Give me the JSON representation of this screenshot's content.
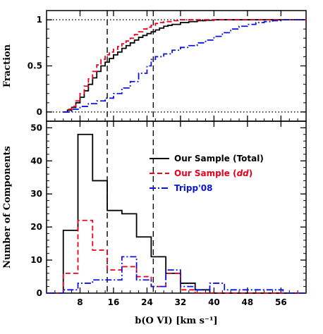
{
  "chart_data": [
    {
      "type": "line",
      "panel": "cumulative",
      "xlabel": "",
      "ylabel": "Fraction",
      "xlim": [
        0,
        62
      ],
      "ylim": [
        -0.1,
        1.1
      ],
      "y_ticks": [
        0,
        0.5,
        1
      ],
      "y_tick_labels": [
        "0",
        "0.5",
        "1"
      ],
      "reference_lines_y": [
        0,
        1
      ],
      "reference_lines_x": [
        14.5,
        25.5
      ],
      "series": [
        {
          "color": "#000000",
          "dash": "solid",
          "x": [
            4,
            5,
            6,
            7,
            8,
            9,
            10,
            11,
            12,
            13,
            14,
            15,
            16,
            17,
            18,
            19,
            20,
            21,
            22,
            23,
            24,
            25,
            26,
            27,
            28,
            29,
            30,
            32,
            34,
            36,
            38,
            40
          ],
          "y": [
            0.0,
            0.02,
            0.05,
            0.1,
            0.16,
            0.23,
            0.3,
            0.37,
            0.44,
            0.5,
            0.54,
            0.58,
            0.62,
            0.65,
            0.69,
            0.72,
            0.75,
            0.78,
            0.81,
            0.83,
            0.85,
            0.87,
            0.89,
            0.91,
            0.93,
            0.94,
            0.95,
            0.97,
            0.98,
            0.99,
            0.995,
            1.0
          ]
        },
        {
          "color": "#e8001c",
          "dash": "dashed",
          "x": [
            4,
            5,
            6,
            7,
            8,
            9,
            10,
            11,
            12,
            13,
            14,
            15,
            16,
            17,
            18,
            19,
            20,
            21,
            22,
            23,
            24,
            25,
            26,
            27,
            28,
            30,
            32
          ],
          "y": [
            0.0,
            0.03,
            0.06,
            0.12,
            0.2,
            0.28,
            0.36,
            0.44,
            0.51,
            0.57,
            0.62,
            0.65,
            0.68,
            0.71,
            0.74,
            0.77,
            0.8,
            0.84,
            0.87,
            0.9,
            0.92,
            0.94,
            0.96,
            0.97,
            0.98,
            0.99,
            1.0
          ]
        },
        {
          "color": "#0a14d8",
          "dash": "dashdot",
          "x": [
            4,
            6,
            8,
            10,
            12,
            14,
            16,
            18,
            20,
            22,
            24,
            25,
            26,
            28,
            30,
            32,
            34,
            36,
            38,
            40,
            42,
            44,
            46,
            48,
            50,
            52,
            54,
            56
          ],
          "y": [
            0.0,
            0.03,
            0.06,
            0.09,
            0.12,
            0.15,
            0.2,
            0.26,
            0.33,
            0.42,
            0.5,
            0.57,
            0.6,
            0.63,
            0.67,
            0.7,
            0.72,
            0.75,
            0.78,
            0.82,
            0.86,
            0.9,
            0.93,
            0.95,
            0.97,
            0.98,
            0.99,
            1.0
          ]
        }
      ]
    },
    {
      "type": "histogram",
      "panel": "histogram",
      "xlabel": "b(O VI) [km s⁻¹]",
      "ylabel": "Number of Components",
      "xlim": [
        0,
        62
      ],
      "ylim": [
        0,
        52
      ],
      "x_ticks": [
        8,
        16,
        24,
        32,
        40,
        48,
        56
      ],
      "x_tick_labels": [
        "8",
        "16",
        "24",
        "32",
        "40",
        "48",
        "56"
      ],
      "y_ticks": [
        0,
        10,
        20,
        30,
        40,
        50
      ],
      "y_tick_labels": [
        "0",
        "10",
        "20",
        "30",
        "40",
        "50"
      ],
      "reference_lines_x": [
        14.5,
        25.5
      ],
      "bin_edges": [
        0,
        4,
        7.5,
        11,
        14.5,
        18,
        21.5,
        25,
        28.5,
        32,
        35.5,
        39,
        42.5,
        46,
        49.5,
        53,
        56.5,
        62
      ],
      "series": [
        {
          "name": "Our Sample (Total)",
          "color": "#000000",
          "dash": "solid",
          "values": [
            0,
            19,
            48,
            34,
            25,
            24,
            17,
            11,
            6,
            3,
            1,
            0,
            0,
            0,
            0,
            0,
            0
          ]
        },
        {
          "name": "Our Sample (dd)",
          "color": "#e8001c",
          "dash": "dashed",
          "values": [
            0,
            6,
            22,
            13,
            7,
            8,
            5,
            2,
            6,
            1,
            0,
            0,
            0,
            0,
            0,
            0,
            0
          ]
        },
        {
          "name": "Tripp'08",
          "color": "#0a14d8",
          "dash": "dashdot",
          "values": [
            0,
            1,
            3,
            4,
            4,
            11,
            4,
            2,
            7,
            2,
            1,
            3,
            1,
            1,
            1,
            1,
            0
          ]
        }
      ],
      "legend": {
        "placement": "right",
        "entries": [
          {
            "text": "Our Sample (Total)",
            "prefix": "",
            "emph": "",
            "suffix": ""
          },
          {
            "text": "",
            "prefix": "Our Sample (",
            "emph": "dd",
            "suffix": ")"
          },
          {
            "text": "Tripp'08",
            "prefix": "",
            "emph": "",
            "suffix": ""
          }
        ]
      }
    }
  ]
}
